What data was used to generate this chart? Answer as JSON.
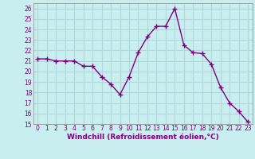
{
  "x": [
    0,
    1,
    2,
    3,
    4,
    5,
    6,
    7,
    8,
    9,
    10,
    11,
    12,
    13,
    14,
    15,
    16,
    17,
    18,
    19,
    20,
    21,
    22,
    23
  ],
  "y": [
    21.2,
    21.2,
    21.0,
    21.0,
    21.0,
    20.5,
    20.5,
    19.5,
    18.8,
    17.8,
    19.5,
    21.8,
    23.3,
    24.3,
    24.3,
    26.0,
    22.5,
    21.8,
    21.7,
    20.7,
    18.5,
    17.0,
    16.2,
    15.2
  ],
  "line_color": "#800080",
  "marker": "+",
  "marker_size": 4,
  "bg_color": "#c8eef0",
  "grid_color": "#b0d8dc",
  "xlabel": "Windchill (Refroidissement éolien,°C)",
  "xlabel_fontsize": 6.5,
  "ylim": [
    15,
    26.5
  ],
  "xlim": [
    -0.5,
    23.5
  ],
  "yticks": [
    15,
    16,
    17,
    18,
    19,
    20,
    21,
    22,
    23,
    24,
    25,
    26
  ],
  "xticks": [
    0,
    1,
    2,
    3,
    4,
    5,
    6,
    7,
    8,
    9,
    10,
    11,
    12,
    13,
    14,
    15,
    16,
    17,
    18,
    19,
    20,
    21,
    22,
    23
  ],
  "tick_fontsize": 5.5,
  "line_width": 1.0,
  "marker_edge_width": 1.0
}
